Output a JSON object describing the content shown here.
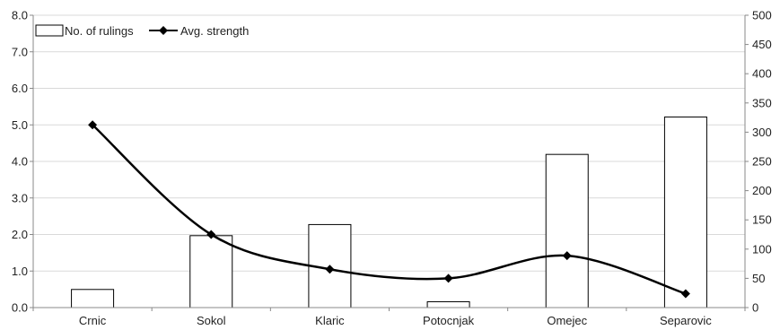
{
  "chart_data": {
    "type": "bar+line",
    "categories": [
      "Crnic",
      "Sokol",
      "Klaric",
      "Potocnjak",
      "Omejec",
      "Separovic"
    ],
    "series": [
      {
        "name": "No. of rulings",
        "type": "bar",
        "axis": "right",
        "values": [
          31,
          123,
          142,
          10,
          262,
          326
        ]
      },
      {
        "name": "Avg. strength",
        "type": "line",
        "axis": "left",
        "values": [
          5.0,
          2.0,
          1.05,
          0.8,
          1.42,
          0.38
        ]
      }
    ],
    "left_axis": {
      "ylim": [
        0,
        8
      ],
      "ticks": [
        "0.0",
        "1.0",
        "2.0",
        "3.0",
        "4.0",
        "5.0",
        "6.0",
        "7.0",
        "8.0"
      ]
    },
    "right_axis": {
      "ylim": [
        0,
        500
      ],
      "ticks": [
        "0",
        "50",
        "100",
        "150",
        "200",
        "250",
        "300",
        "350",
        "400",
        "450",
        "500"
      ]
    },
    "grid": true,
    "legend": "top-left",
    "colors": {
      "bar_fill": "#ffffff",
      "bar_stroke": "#000000",
      "line": "#000000",
      "grid": "#d9d9d9"
    }
  }
}
